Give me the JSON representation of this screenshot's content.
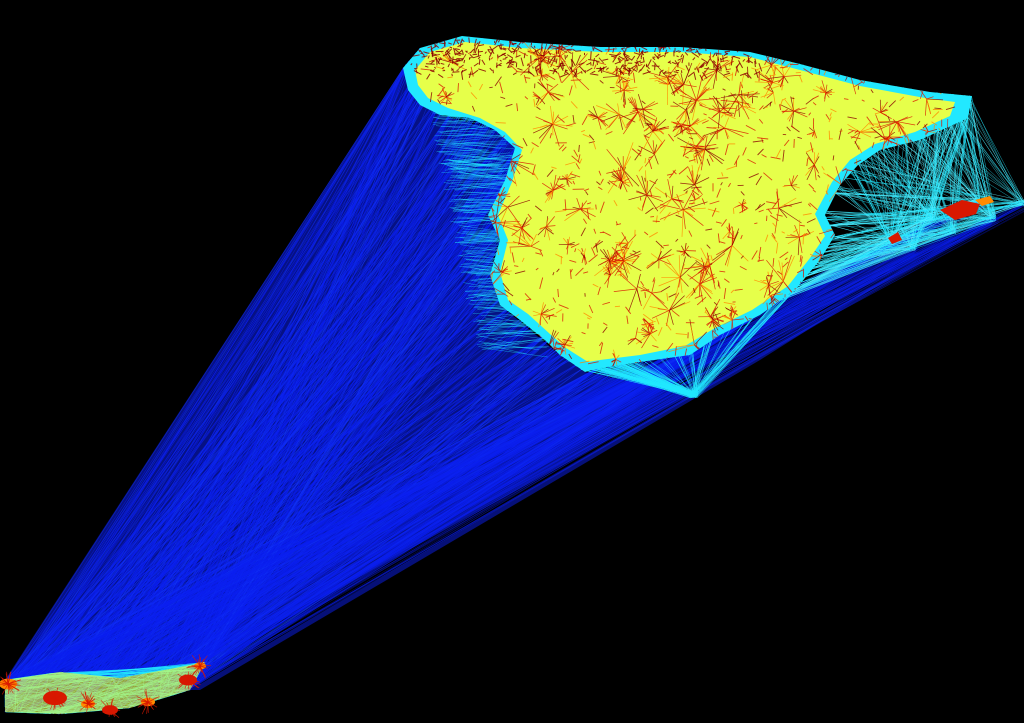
{
  "colors": {
    "background": "#000000",
    "long_edges": "#0b1ff0",
    "long_edges_light": "#1a4dff",
    "mid_edges": "#22e8ff",
    "mid_edges_light": "#5cf0ff",
    "short_edges_yellow": "#e6ff4a",
    "short_edges_orange": "#ff8a00",
    "short_edges_red": "#d81800",
    "dense_dark_red": "#8a0000"
  },
  "map": {
    "kind": "triangulation-mesh",
    "colormap": "jet",
    "regions": [
      "mainland",
      "balearic-islands",
      "canary-islands"
    ]
  }
}
